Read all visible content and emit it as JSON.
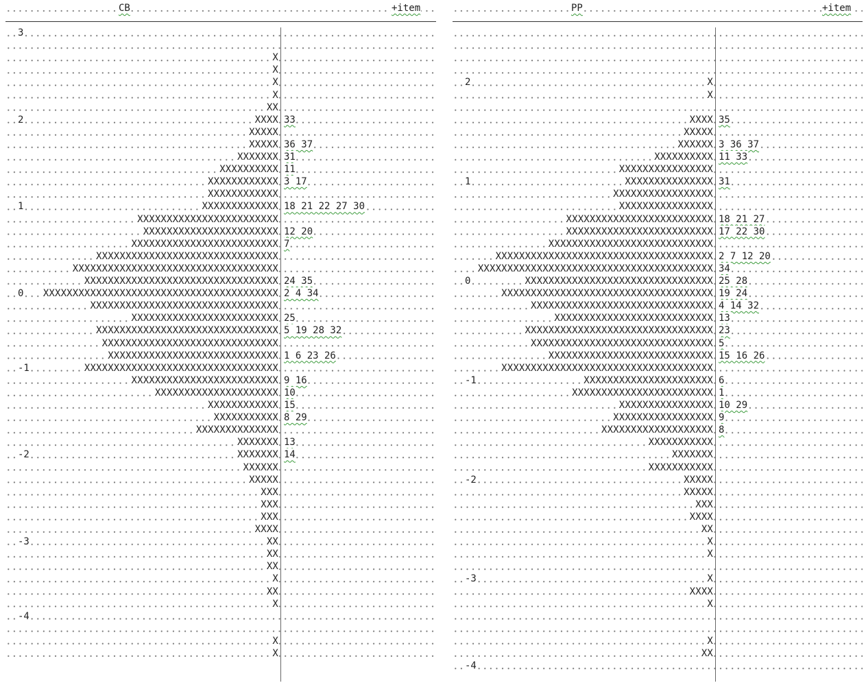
{
  "panels": [
    {
      "title": "CB",
      "item_header": "+item",
      "rows": [
        {
          "measure": "3"
        },
        {},
        {
          "persons": "X"
        },
        {
          "persons": "X"
        },
        {
          "persons": "X"
        },
        {
          "persons": "X"
        },
        {
          "persons": "XX"
        },
        {
          "measure": "2",
          "persons": "XXXX",
          "items": "33"
        },
        {
          "persons": "XXXXX"
        },
        {
          "persons": "XXXXX",
          "items": "36 37"
        },
        {
          "persons": "XXXXXXX",
          "items": "31"
        },
        {
          "persons": "XXXXXXXXXX",
          "items": "11"
        },
        {
          "persons": "XXXXXXXXXXXX",
          "items": "3 17"
        },
        {
          "persons": "XXXXXXXXXXXX"
        },
        {
          "measure": "1",
          "persons": "XXXXXXXXXXXXX",
          "items": "18 21 22 27 30"
        },
        {
          "persons": "XXXXXXXXXXXXXXXXXXXXXXXX"
        },
        {
          "persons": "XXXXXXXXXXXXXXXXXXXXXXX",
          "items": "12 20"
        },
        {
          "persons": "XXXXXXXXXXXXXXXXXXXXXXXXX",
          "items": "7"
        },
        {
          "persons": "XXXXXXXXXXXXXXXXXXXXXXXXXXXXXXX"
        },
        {
          "persons": "XXXXXXXXXXXXXXXXXXXXXXXXXXXXXXXXXXX"
        },
        {
          "persons": "XXXXXXXXXXXXXXXXXXXXXXXXXXXXXXXXX",
          "items": "24 35"
        },
        {
          "measure": "0",
          "persons": "XXXXXXXXXXXXXXXXXXXXXXXXXXXXXXXXXXXXXXXX",
          "items": "2 4 34"
        },
        {
          "persons": "XXXXXXXXXXXXXXXXXXXXXXXXXXXXXXXX"
        },
        {
          "persons": "XXXXXXXXXXXXXXXXXXXXXXXXX",
          "items": "25"
        },
        {
          "persons": "XXXXXXXXXXXXXXXXXXXXXXXXXXXXXXX",
          "items": "5 19 28 32"
        },
        {
          "persons": "XXXXXXXXXXXXXXXXXXXXXXXXXXXXXX"
        },
        {
          "persons": "XXXXXXXXXXXXXXXXXXXXXXXXXXXXX",
          "items": "1 6 23 26"
        },
        {
          "measure": "-1",
          "persons": "XXXXXXXXXXXXXXXXXXXXXXXXXXXXXXXXX"
        },
        {
          "persons": "XXXXXXXXXXXXXXXXXXXXXXXXX",
          "items": "9 16"
        },
        {
          "persons": "XXXXXXXXXXXXXXXXXXXXX",
          "items": "10"
        },
        {
          "persons": "XXXXXXXXXXXX",
          "items": "15"
        },
        {
          "persons": "XXXXXXXXXXX",
          "items": "8 29"
        },
        {
          "persons": "XXXXXXXXXXXXXX"
        },
        {
          "persons": "XXXXXXX",
          "items": "13"
        },
        {
          "measure": "-2",
          "persons": "XXXXXXX",
          "items": "14"
        },
        {
          "persons": "XXXXXX"
        },
        {
          "persons": "XXXXX"
        },
        {
          "persons": "XXX"
        },
        {
          "persons": "XXX"
        },
        {
          "persons": "XXX"
        },
        {
          "persons": "XXXX"
        },
        {
          "measure": "-3",
          "persons": "XX"
        },
        {
          "persons": "XX"
        },
        {
          "persons": "XX"
        },
        {
          "persons": "X"
        },
        {
          "persons": "XX"
        },
        {
          "persons": "X"
        },
        {
          "measure": "-4"
        },
        {},
        {
          "persons": "X"
        },
        {
          "persons": "X"
        }
      ]
    },
    {
      "title": "PP",
      "item_header": "+item",
      "rows": [
        {},
        {},
        {},
        {},
        {
          "measure": "2",
          "persons": "X"
        },
        {
          "persons": "X"
        },
        {},
        {
          "persons": "XXXX",
          "items": "35"
        },
        {
          "persons": "XXXXX"
        },
        {
          "persons": "XXXXXX",
          "items": "3 36 37"
        },
        {
          "persons": "XXXXXXXXXX",
          "items": "11 33"
        },
        {
          "persons": "XXXXXXXXXXXXXXXX"
        },
        {
          "measure": "1",
          "persons": "XXXXXXXXXXXXXXX",
          "items": "31"
        },
        {
          "persons": "XXXXXXXXXXXXXXXXX"
        },
        {
          "persons": "XXXXXXXXXXXXXXXX"
        },
        {
          "persons": "XXXXXXXXXXXXXXXXXXXXXXXXX",
          "items": "18 21 27"
        },
        {
          "persons": "XXXXXXXXXXXXXXXXXXXXXXXXX",
          "items": "17 22 30"
        },
        {
          "persons": "XXXXXXXXXXXXXXXXXXXXXXXXXXXX"
        },
        {
          "persons": "XXXXXXXXXXXXXXXXXXXXXXXXXXXXXXXXXXXXX",
          "items": "2 7 12 20"
        },
        {
          "persons": "XXXXXXXXXXXXXXXXXXXXXXXXXXXXXXXXXXXXXXXX",
          "items": "34"
        },
        {
          "measure": "0",
          "persons": "XXXXXXXXXXXXXXXXXXXXXXXXXXXXXXXX",
          "items": "25 28"
        },
        {
          "persons": "XXXXXXXXXXXXXXXXXXXXXXXXXXXXXXXXXXXX",
          "items": "19 24"
        },
        {
          "persons": "XXXXXXXXXXXXXXXXXXXXXXXXXXXXXXX",
          "items": "4 14 32"
        },
        {
          "persons": "XXXXXXXXXXXXXXXXXXXXXXXXXXX",
          "items": "13"
        },
        {
          "persons": "XXXXXXXXXXXXXXXXXXXXXXXXXXXXXXXX",
          "items": "23"
        },
        {
          "persons": "XXXXXXXXXXXXXXXXXXXXXXXXXXXXXXX",
          "items": "5"
        },
        {
          "persons": "XXXXXXXXXXXXXXXXXXXXXXXXXXXX",
          "items": "15 16 26"
        },
        {
          "persons": "XXXXXXXXXXXXXXXXXXXXXXXXXXXXXXXXXXXX"
        },
        {
          "measure": "-1",
          "persons": "XXXXXXXXXXXXXXXXXXXXXX",
          "items": "6"
        },
        {
          "persons": "XXXXXXXXXXXXXXXXXXXXXXXX",
          "items": "1"
        },
        {
          "persons": "XXXXXXXXXXXXXXXX",
          "items": "10 29"
        },
        {
          "persons": "XXXXXXXXXXXXXXXXX",
          "items": "9"
        },
        {
          "persons": "XXXXXXXXXXXXXXXXXXX",
          "items": "8"
        },
        {
          "persons": "XXXXXXXXXXX"
        },
        {
          "persons": "XXXXXXX"
        },
        {
          "persons": "XXXXXXXXXXX"
        },
        {
          "measure": "-2",
          "persons": "XXXXX"
        },
        {
          "persons": "XXXXX"
        },
        {
          "persons": "XXX"
        },
        {
          "persons": "XXXX"
        },
        {
          "persons": "XX"
        },
        {
          "persons": "X"
        },
        {
          "persons": "X"
        },
        {},
        {
          "measure": "-3",
          "persons": "X"
        },
        {
          "persons": "XXXX"
        },
        {
          "persons": "X"
        },
        {},
        {},
        {
          "persons": "X"
        },
        {
          "persons": "XX"
        },
        {
          "measure": "-4"
        }
      ]
    }
  ]
}
